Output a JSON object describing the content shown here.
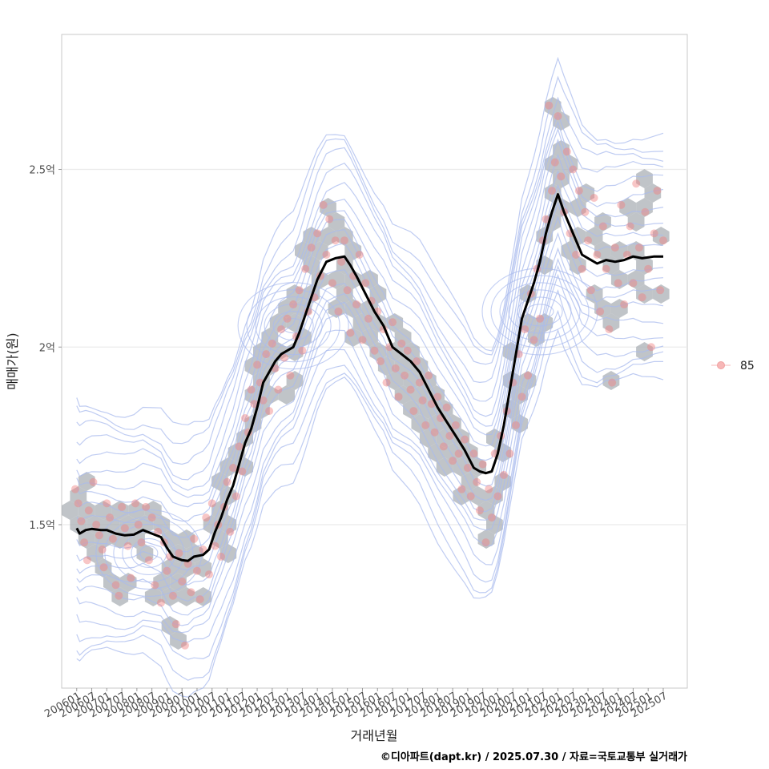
{
  "caption": "©디아파트(dapt.kr) / 2025.07.30 / 자료=국토교통부 실거래가",
  "chart_data": {
    "type": "scatter",
    "xlabel": "거래년월",
    "ylabel": "매매가(원)",
    "legend": {
      "position": "right",
      "entries": [
        "85"
      ]
    },
    "grid": true,
    "x_ticks": [
      "200601",
      "200607",
      "200701",
      "200707",
      "200801",
      "200807",
      "200901",
      "200907",
      "201001",
      "201007",
      "201101",
      "201107",
      "201201",
      "201207",
      "201301",
      "201307",
      "201401",
      "201407",
      "201501",
      "201507",
      "201601",
      "201607",
      "201701",
      "201707",
      "201801",
      "201807",
      "201901",
      "201907",
      "202001",
      "202007",
      "202101",
      "202107",
      "202201",
      "202207",
      "202301",
      "202307",
      "202401",
      "202407",
      "202501",
      "202507"
    ],
    "xlim": [
      2005.5,
      2026.3
    ],
    "y_ticks": [
      {
        "value": 150000000,
        "label": "1.5억"
      },
      {
        "value": 200000000,
        "label": "2억"
      },
      {
        "value": 250000000,
        "label": "2.5억"
      }
    ],
    "ylim": [
      104000000,
      288000000
    ],
    "series": [
      {
        "name": "85",
        "kind": "moving-average-line",
        "color": "#000000",
        "points": [
          [
            2006.0,
            149000000
          ],
          [
            2006.1,
            147500000
          ],
          [
            2006.3,
            148500000
          ],
          [
            2006.5,
            148800000
          ],
          [
            2006.8,
            148500000
          ],
          [
            2007.0,
            148500000
          ],
          [
            2007.3,
            147500000
          ],
          [
            2007.6,
            147000000
          ],
          [
            2007.9,
            147200000
          ],
          [
            2008.2,
            148500000
          ],
          [
            2008.5,
            147500000
          ],
          [
            2008.8,
            146500000
          ],
          [
            2009.0,
            143500000
          ],
          [
            2009.2,
            141000000
          ],
          [
            2009.5,
            140000000
          ],
          [
            2009.7,
            139800000
          ],
          [
            2009.9,
            141000000
          ],
          [
            2010.2,
            141500000
          ],
          [
            2010.4,
            143000000
          ],
          [
            2010.6,
            148000000
          ],
          [
            2010.8,
            152000000
          ],
          [
            2011.0,
            157000000
          ],
          [
            2011.2,
            161000000
          ],
          [
            2011.4,
            167000000
          ],
          [
            2011.6,
            173000000
          ],
          [
            2011.8,
            177000000
          ],
          [
            2012.0,
            183000000
          ],
          [
            2012.2,
            190000000
          ],
          [
            2012.4,
            193000000
          ],
          [
            2012.6,
            196000000
          ],
          [
            2012.8,
            198000000
          ],
          [
            2013.0,
            199000000
          ],
          [
            2013.2,
            200000000
          ],
          [
            2013.4,
            204000000
          ],
          [
            2013.6,
            209000000
          ],
          [
            2013.8,
            214000000
          ],
          [
            2014.0,
            219000000
          ],
          [
            2014.3,
            224000000
          ],
          [
            2014.6,
            225000000
          ],
          [
            2014.9,
            225500000
          ],
          [
            2015.1,
            223000000
          ],
          [
            2015.3,
            220000000
          ],
          [
            2015.6,
            215000000
          ],
          [
            2015.9,
            210000000
          ],
          [
            2016.2,
            206000000
          ],
          [
            2016.5,
            200000000
          ],
          [
            2016.8,
            198000000
          ],
          [
            2017.1,
            196000000
          ],
          [
            2017.4,
            193000000
          ],
          [
            2017.7,
            188000000
          ],
          [
            2018.0,
            183000000
          ],
          [
            2018.3,
            179000000
          ],
          [
            2018.6,
            175000000
          ],
          [
            2018.9,
            171000000
          ],
          [
            2019.2,
            166000000
          ],
          [
            2019.4,
            165000000
          ],
          [
            2019.6,
            164500000
          ],
          [
            2019.8,
            165000000
          ],
          [
            2020.0,
            170000000
          ],
          [
            2020.2,
            178000000
          ],
          [
            2020.4,
            188000000
          ],
          [
            2020.6,
            198000000
          ],
          [
            2020.8,
            208000000
          ],
          [
            2021.0,
            213000000
          ],
          [
            2021.2,
            218000000
          ],
          [
            2021.4,
            224000000
          ],
          [
            2021.6,
            232000000
          ],
          [
            2021.8,
            238000000
          ],
          [
            2022.0,
            243000000
          ],
          [
            2022.2,
            238000000
          ],
          [
            2022.4,
            234000000
          ],
          [
            2022.6,
            230000000
          ],
          [
            2022.8,
            226000000
          ],
          [
            2023.0,
            225000000
          ],
          [
            2023.3,
            223500000
          ],
          [
            2023.6,
            224500000
          ],
          [
            2023.9,
            224000000
          ],
          [
            2024.2,
            224500000
          ],
          [
            2024.5,
            225500000
          ],
          [
            2024.8,
            225000000
          ],
          [
            2025.2,
            225500000
          ],
          [
            2025.5,
            225500000
          ]
        ]
      }
    ],
    "transactions": {
      "name": "85",
      "color": "#f08080",
      "points": [
        [
          2005.95,
          160000000
        ],
        [
          2006.05,
          156000000
        ],
        [
          2006.15,
          151000000
        ],
        [
          2006.25,
          145000000
        ],
        [
          2006.35,
          140000000
        ],
        [
          2006.4,
          154000000
        ],
        [
          2006.55,
          162000000
        ],
        [
          2006.65,
          150000000
        ],
        [
          2006.75,
          147000000
        ],
        [
          2006.85,
          143000000
        ],
        [
          2006.9,
          138000000
        ],
        [
          2007.0,
          156000000
        ],
        [
          2007.1,
          152000000
        ],
        [
          2007.2,
          146000000
        ],
        [
          2007.3,
          133000000
        ],
        [
          2007.4,
          130000000
        ],
        [
          2007.5,
          155000000
        ],
        [
          2007.6,
          149000000
        ],
        [
          2007.7,
          144000000
        ],
        [
          2007.8,
          135000000
        ],
        [
          2007.95,
          156000000
        ],
        [
          2008.05,
          150000000
        ],
        [
          2008.15,
          145000000
        ],
        [
          2008.3,
          155000000
        ],
        [
          2008.4,
          140000000
        ],
        [
          2008.5,
          152000000
        ],
        [
          2008.6,
          133000000
        ],
        [
          2008.7,
          148000000
        ],
        [
          2008.8,
          128000000
        ],
        [
          2008.9,
          145000000
        ],
        [
          2009.0,
          137000000
        ],
        [
          2009.1,
          141000000
        ],
        [
          2009.2,
          130000000
        ],
        [
          2009.3,
          122000000
        ],
        [
          2009.4,
          142000000
        ],
        [
          2009.5,
          134000000
        ],
        [
          2009.6,
          116000000
        ],
        [
          2009.7,
          139000000
        ],
        [
          2009.8,
          131000000
        ],
        [
          2009.9,
          146000000
        ],
        [
          2010.0,
          137000000
        ],
        [
          2010.1,
          129000000
        ],
        [
          2010.2,
          143000000
        ],
        [
          2010.3,
          152000000
        ],
        [
          2010.4,
          136000000
        ],
        [
          2010.5,
          156000000
        ],
        [
          2010.6,
          144000000
        ],
        [
          2010.7,
          150000000
        ],
        [
          2010.8,
          141000000
        ],
        [
          2010.9,
          155000000
        ],
        [
          2011.0,
          162000000
        ],
        [
          2011.1,
          148000000
        ],
        [
          2011.2,
          166000000
        ],
        [
          2011.3,
          158000000
        ],
        [
          2011.4,
          172000000
        ],
        [
          2011.5,
          165000000
        ],
        [
          2011.6,
          180000000
        ],
        [
          2011.7,
          176000000
        ],
        [
          2011.8,
          188000000
        ],
        [
          2011.9,
          184000000
        ],
        [
          2012.0,
          195000000
        ],
        [
          2012.1,
          190000000
        ],
        [
          2012.2,
          185000000
        ],
        [
          2012.3,
          198000000
        ],
        [
          2012.4,
          182000000
        ],
        [
          2012.5,
          201000000
        ],
        [
          2012.6,
          194000000
        ],
        [
          2012.7,
          188000000
        ],
        [
          2012.8,
          205000000
        ],
        [
          2012.9,
          197000000
        ],
        [
          2013.0,
          208000000
        ],
        [
          2013.1,
          192000000
        ],
        [
          2013.2,
          212000000
        ],
        [
          2013.3,
          203000000
        ],
        [
          2013.4,
          216000000
        ],
        [
          2013.5,
          199000000
        ],
        [
          2013.6,
          222000000
        ],
        [
          2013.7,
          210000000
        ],
        [
          2013.8,
          228000000
        ],
        [
          2013.9,
          214000000
        ],
        [
          2014.0,
          232000000
        ],
        [
          2014.1,
          220000000
        ],
        [
          2014.2,
          240000000
        ],
        [
          2014.3,
          226000000
        ],
        [
          2014.4,
          236000000
        ],
        [
          2014.5,
          218000000
        ],
        [
          2014.6,
          230000000
        ],
        [
          2014.7,
          210000000
        ],
        [
          2014.8,
          224000000
        ],
        [
          2014.9,
          230000000
        ],
        [
          2015.0,
          216000000
        ],
        [
          2015.1,
          204000000
        ],
        [
          2015.2,
          220000000
        ],
        [
          2015.3,
          212000000
        ],
        [
          2015.4,
          226000000
        ],
        [
          2015.5,
          202000000
        ],
        [
          2015.6,
          218000000
        ],
        [
          2015.7,
          208000000
        ],
        [
          2015.8,
          213000000
        ],
        [
          2015.9,
          199000000
        ],
        [
          2016.0,
          210000000
        ],
        [
          2016.1,
          196000000
        ],
        [
          2016.2,
          205000000
        ],
        [
          2016.3,
          190000000
        ],
        [
          2016.4,
          200000000
        ],
        [
          2016.5,
          207000000
        ],
        [
          2016.6,
          194000000
        ],
        [
          2016.7,
          186000000
        ],
        [
          2016.8,
          201000000
        ],
        [
          2016.9,
          192000000
        ],
        [
          2017.0,
          199000000
        ],
        [
          2017.1,
          188000000
        ],
        [
          2017.2,
          182000000
        ],
        [
          2017.3,
          196000000
        ],
        [
          2017.4,
          190000000
        ],
        [
          2017.5,
          185000000
        ],
        [
          2017.6,
          178000000
        ],
        [
          2017.7,
          192000000
        ],
        [
          2017.8,
          184000000
        ],
        [
          2017.9,
          176000000
        ],
        [
          2018.0,
          186000000
        ],
        [
          2018.1,
          180000000
        ],
        [
          2018.2,
          172000000
        ],
        [
          2018.3,
          183000000
        ],
        [
          2018.4,
          175000000
        ],
        [
          2018.5,
          168000000
        ],
        [
          2018.6,
          178000000
        ],
        [
          2018.7,
          170000000
        ],
        [
          2018.8,
          160000000
        ],
        [
          2018.9,
          174000000
        ],
        [
          2019.0,
          166000000
        ],
        [
          2019.1,
          158000000
        ],
        [
          2019.2,
          170000000
        ],
        [
          2019.3,
          162000000
        ],
        [
          2019.4,
          154000000
        ],
        [
          2019.5,
          167000000
        ],
        [
          2019.6,
          145000000
        ],
        [
          2019.7,
          160000000
        ],
        [
          2019.8,
          152000000
        ],
        [
          2019.9,
          170000000
        ],
        [
          2020.0,
          158000000
        ],
        [
          2020.1,
          175000000
        ],
        [
          2020.2,
          164000000
        ],
        [
          2020.3,
          182000000
        ],
        [
          2020.4,
          170000000
        ],
        [
          2020.5,
          190000000
        ],
        [
          2020.6,
          178000000
        ],
        [
          2020.7,
          198000000
        ],
        [
          2020.8,
          186000000
        ],
        [
          2020.9,
          205000000
        ],
        [
          2021.0,
          192000000
        ],
        [
          2021.1,
          215000000
        ],
        [
          2021.2,
          202000000
        ],
        [
          2021.3,
          222000000
        ],
        [
          2021.4,
          208000000
        ],
        [
          2021.5,
          230000000
        ],
        [
          2021.6,
          236000000
        ],
        [
          2021.7,
          268000000
        ],
        [
          2021.8,
          244000000
        ],
        [
          2021.9,
          252000000
        ],
        [
          2022.0,
          265000000
        ],
        [
          2022.1,
          248000000
        ],
        [
          2022.2,
          238000000
        ],
        [
          2022.3,
          255000000
        ],
        [
          2022.4,
          232000000
        ],
        [
          2022.5,
          250000000
        ],
        [
          2022.6,
          226000000
        ],
        [
          2022.7,
          244000000
        ],
        [
          2022.8,
          222000000
        ],
        [
          2022.9,
          238000000
        ],
        [
          2023.0,
          230000000
        ],
        [
          2023.1,
          216000000
        ],
        [
          2023.2,
          242000000
        ],
        [
          2023.3,
          226000000
        ],
        [
          2023.4,
          210000000
        ],
        [
          2023.5,
          234000000
        ],
        [
          2023.6,
          222000000
        ],
        [
          2023.7,
          205000000
        ],
        [
          2023.8,
          190000000
        ],
        [
          2023.9,
          228000000
        ],
        [
          2024.0,
          218000000
        ],
        [
          2024.1,
          240000000
        ],
        [
          2024.2,
          212000000
        ],
        [
          2024.3,
          226000000
        ],
        [
          2024.4,
          234000000
        ],
        [
          2024.5,
          218000000
        ],
        [
          2024.6,
          246000000
        ],
        [
          2024.7,
          228000000
        ],
        [
          2024.8,
          214000000
        ],
        [
          2024.9,
          238000000
        ],
        [
          2025.0,
          222000000
        ],
        [
          2025.1,
          200000000
        ],
        [
          2025.2,
          232000000
        ],
        [
          2025.3,
          244000000
        ],
        [
          2025.4,
          216000000
        ],
        [
          2025.5,
          230000000
        ]
      ]
    },
    "density_contours": {
      "color": "#aabbee",
      "count": 10
    },
    "hexbin": {
      "color": "#a8adb3"
    }
  }
}
